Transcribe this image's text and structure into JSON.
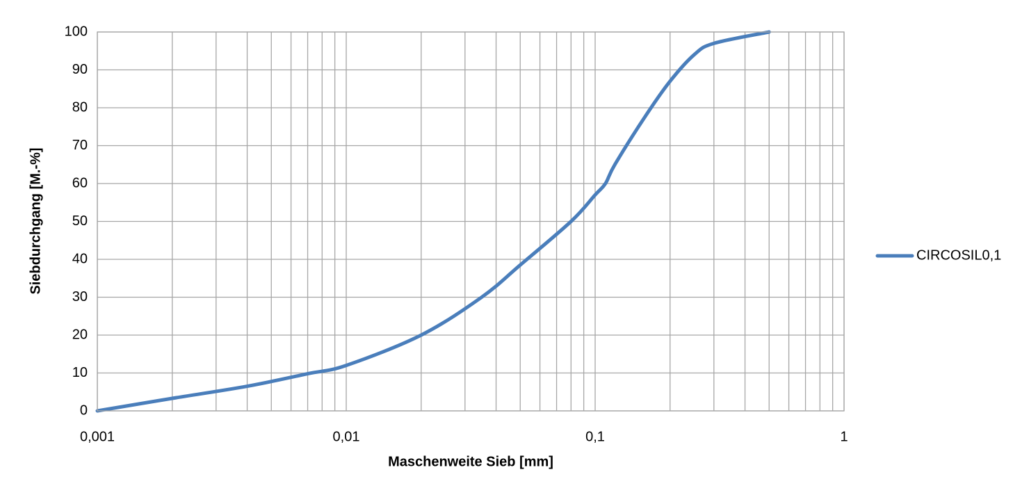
{
  "chart_data": {
    "type": "line",
    "xlabel": "Maschenweite Sieb [mm]",
    "ylabel": "Siebdurchgang [M.-%]",
    "x": [
      0.001,
      0.002,
      0.004,
      0.007,
      0.01,
      0.02,
      0.035,
      0.05,
      0.08,
      0.1,
      0.11,
      0.12,
      0.16,
      0.2,
      0.25,
      0.3,
      0.5
    ],
    "series": [
      {
        "name": "CIRCOSIL0,1",
        "color": "#4a7ebb",
        "values": [
          0,
          3.3,
          6.5,
          9.8,
          12,
          20,
          30,
          38.5,
          50,
          57,
          60,
          65,
          78,
          87,
          94,
          97,
          100
        ]
      }
    ],
    "xscale": "log",
    "xlim": [
      0.001,
      1
    ],
    "xticks": [
      {
        "value": 0.001,
        "label": "0,001"
      },
      {
        "value": 0.01,
        "label": "0,01"
      },
      {
        "value": 0.1,
        "label": "0,1"
      },
      1
    ],
    "xminorticks": [
      0.002,
      0.003,
      0.004,
      0.005,
      0.006,
      0.007,
      0.008,
      0.009,
      0.02,
      0.03,
      0.04,
      0.05,
      0.06,
      0.07,
      0.08,
      0.09,
      0.2,
      0.3,
      0.4,
      0.5,
      0.6,
      0.7,
      0.8,
      0.9
    ],
    "ylim": [
      0,
      100
    ],
    "yticks": [
      0,
      10,
      20,
      30,
      40,
      50,
      60,
      70,
      80,
      90,
      100
    ],
    "grid": true,
    "legend": "right"
  }
}
